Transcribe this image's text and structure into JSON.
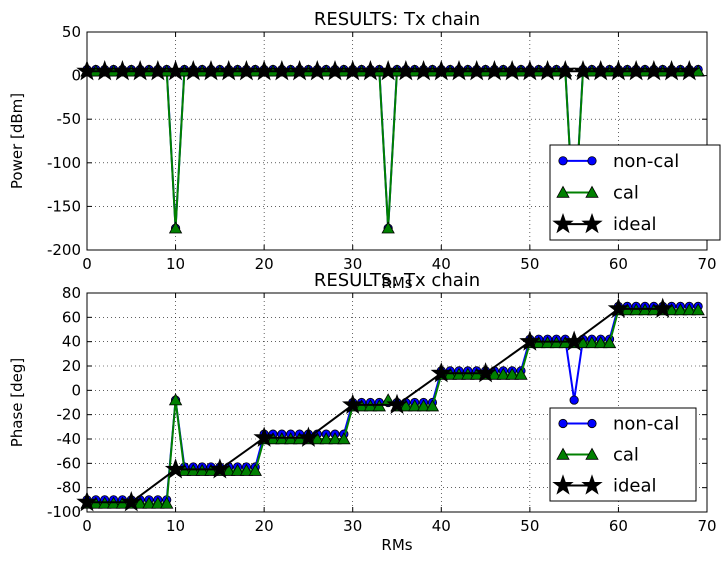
{
  "chart_data": [
    {
      "type": "line",
      "title": "RESULTS: Tx chain",
      "xlabel": "RMs",
      "ylabel": "Power [dBm]",
      "xlim": [
        0,
        70
      ],
      "ylim": [
        -200,
        50
      ],
      "xticks": [
        0,
        10,
        20,
        30,
        40,
        50,
        60,
        70
      ],
      "yticks": [
        -200,
        -150,
        -100,
        -50,
        0,
        50
      ],
      "grid": true,
      "legend_position": "lower-right",
      "series": [
        {
          "name": "non-cal",
          "color": "#0000ff",
          "marker": "circle",
          "x": [
            0,
            1,
            2,
            3,
            4,
            5,
            6,
            7,
            8,
            9,
            10,
            11,
            12,
            13,
            14,
            15,
            16,
            17,
            18,
            19,
            20,
            21,
            22,
            23,
            24,
            25,
            26,
            27,
            28,
            29,
            30,
            31,
            32,
            33,
            34,
            35,
            36,
            37,
            38,
            39,
            40,
            41,
            42,
            43,
            44,
            45,
            46,
            47,
            48,
            49,
            50,
            51,
            52,
            53,
            54,
            55,
            56,
            57,
            58,
            59,
            60,
            61,
            62,
            63,
            64,
            65,
            66,
            67,
            68,
            69
          ],
          "y": [
            7,
            7,
            7,
            7,
            7,
            7,
            7,
            7,
            7,
            7,
            -175,
            7,
            7,
            7,
            7,
            7,
            7,
            7,
            7,
            7,
            7,
            7,
            7,
            7,
            7,
            7,
            7,
            7,
            7,
            7,
            7,
            7,
            7,
            7,
            -175,
            7,
            7,
            7,
            7,
            7,
            7,
            7,
            7,
            7,
            7,
            7,
            7,
            7,
            7,
            7,
            7,
            7,
            7,
            7,
            7,
            -175,
            7,
            7,
            7,
            7,
            7,
            7,
            7,
            7,
            7,
            7,
            7,
            7,
            7,
            7
          ]
        },
        {
          "name": "cal",
          "color": "#008000",
          "marker": "triangle",
          "x": [
            0,
            1,
            2,
            3,
            4,
            5,
            6,
            7,
            8,
            9,
            10,
            11,
            12,
            13,
            14,
            15,
            16,
            17,
            18,
            19,
            20,
            21,
            22,
            23,
            24,
            25,
            26,
            27,
            28,
            29,
            30,
            31,
            32,
            33,
            34,
            35,
            36,
            37,
            38,
            39,
            40,
            41,
            42,
            43,
            44,
            45,
            46,
            47,
            48,
            49,
            50,
            51,
            52,
            53,
            54,
            55,
            56,
            57,
            58,
            59,
            60,
            61,
            62,
            63,
            64,
            65,
            66,
            67,
            68,
            69
          ],
          "y": [
            5,
            5,
            5,
            5,
            5,
            5,
            5,
            5,
            5,
            5,
            -175,
            5,
            5,
            5,
            5,
            5,
            5,
            5,
            5,
            5,
            5,
            5,
            5,
            5,
            5,
            5,
            5,
            5,
            5,
            5,
            5,
            5,
            5,
            5,
            -175,
            5,
            5,
            5,
            5,
            5,
            5,
            5,
            5,
            5,
            5,
            5,
            5,
            5,
            5,
            5,
            5,
            5,
            5,
            5,
            5,
            -175,
            5,
            5,
            5,
            5,
            5,
            5,
            5,
            5,
            5,
            5,
            5,
            5,
            5,
            5
          ]
        },
        {
          "name": "ideal",
          "color": "#000000",
          "marker": "star",
          "x": [
            0,
            2,
            4,
            6,
            8,
            10,
            12,
            14,
            16,
            18,
            20,
            22,
            24,
            26,
            28,
            30,
            32,
            34,
            36,
            38,
            40,
            42,
            44,
            46,
            48,
            50,
            52,
            54,
            56,
            58,
            60,
            62,
            64,
            66,
            68
          ],
          "y": [
            5,
            5,
            5,
            5,
            5,
            5,
            5,
            5,
            5,
            5,
            5,
            5,
            5,
            5,
            5,
            5,
            5,
            5,
            5,
            5,
            5,
            5,
            5,
            5,
            5,
            5,
            5,
            5,
            5,
            5,
            5,
            5,
            5,
            5,
            5
          ]
        }
      ]
    },
    {
      "type": "line",
      "title": "RESULTS: Tx chain",
      "xlabel": "RMs",
      "ylabel": "Phase [deg]",
      "xlim": [
        0,
        70
      ],
      "ylim": [
        -100,
        80
      ],
      "xticks": [
        0,
        10,
        20,
        30,
        40,
        50,
        60,
        70
      ],
      "yticks": [
        -100,
        -80,
        -60,
        -40,
        -20,
        0,
        20,
        40,
        60,
        80
      ],
      "grid": true,
      "legend_position": "lower-right",
      "series": [
        {
          "name": "non-cal",
          "color": "#0000ff",
          "marker": "circle",
          "x": [
            0,
            1,
            2,
            3,
            4,
            5,
            6,
            7,
            8,
            9,
            10,
            11,
            12,
            13,
            14,
            15,
            16,
            17,
            18,
            19,
            20,
            21,
            22,
            23,
            24,
            25,
            26,
            27,
            28,
            29,
            30,
            31,
            32,
            33,
            34,
            35,
            36,
            37,
            38,
            39,
            40,
            41,
            42,
            43,
            44,
            45,
            46,
            47,
            48,
            49,
            50,
            51,
            52,
            53,
            54,
            55,
            56,
            57,
            58,
            59,
            60,
            61,
            62,
            63,
            64,
            65,
            66,
            67,
            68,
            69
          ],
          "y": [
            -90,
            -90,
            -90,
            -90,
            -90,
            -90,
            -90,
            -90,
            -90,
            -90,
            -8,
            -63,
            -63,
            -63,
            -63,
            -63,
            -63,
            -63,
            -63,
            -63,
            -36,
            -36,
            -36,
            -36,
            -36,
            -36,
            -36,
            -36,
            -36,
            -36,
            -10,
            -10,
            -10,
            -10,
            -10,
            -10,
            -10,
            -10,
            -10,
            -10,
            16,
            16,
            16,
            16,
            16,
            16,
            16,
            16,
            16,
            16,
            42,
            42,
            42,
            42,
            42,
            -8,
            42,
            42,
            42,
            42,
            69,
            69,
            69,
            69,
            69,
            69,
            69,
            69,
            69,
            69
          ]
        },
        {
          "name": "cal",
          "color": "#008000",
          "marker": "triangle",
          "x": [
            0,
            1,
            2,
            3,
            4,
            5,
            6,
            7,
            8,
            9,
            10,
            11,
            12,
            13,
            14,
            15,
            16,
            17,
            18,
            19,
            20,
            21,
            22,
            23,
            24,
            25,
            26,
            27,
            28,
            29,
            30,
            31,
            32,
            33,
            34,
            35,
            36,
            37,
            38,
            39,
            40,
            41,
            42,
            43,
            44,
            45,
            46,
            47,
            48,
            49,
            50,
            51,
            52,
            53,
            54,
            55,
            56,
            57,
            58,
            59,
            60,
            61,
            62,
            63,
            64,
            65,
            66,
            67,
            68,
            69
          ],
          "y": [
            -93,
            -93,
            -93,
            -93,
            -93,
            -93,
            -93,
            -93,
            -93,
            -93,
            -8,
            -66,
            -66,
            -66,
            -66,
            -66,
            -66,
            -66,
            -66,
            -66,
            -40,
            -40,
            -40,
            -40,
            -40,
            -40,
            -40,
            -40,
            -40,
            -40,
            -13,
            -13,
            -13,
            -13,
            -8,
            -13,
            -13,
            -13,
            -13,
            -13,
            13,
            13,
            13,
            13,
            13,
            13,
            13,
            13,
            13,
            13,
            39,
            39,
            39,
            39,
            39,
            39,
            39,
            39,
            39,
            39,
            66,
            66,
            66,
            66,
            66,
            66,
            66,
            66,
            66,
            66
          ]
        },
        {
          "name": "ideal",
          "color": "#000000",
          "marker": "star",
          "x": [
            0,
            5,
            10,
            15,
            20,
            25,
            30,
            35,
            40,
            45,
            50,
            55,
            60,
            65
          ],
          "y": [
            -92,
            -92,
            -65,
            -65,
            -39,
            -39,
            -12,
            -12,
            14,
            14,
            40,
            40,
            67,
            67
          ]
        }
      ]
    }
  ]
}
